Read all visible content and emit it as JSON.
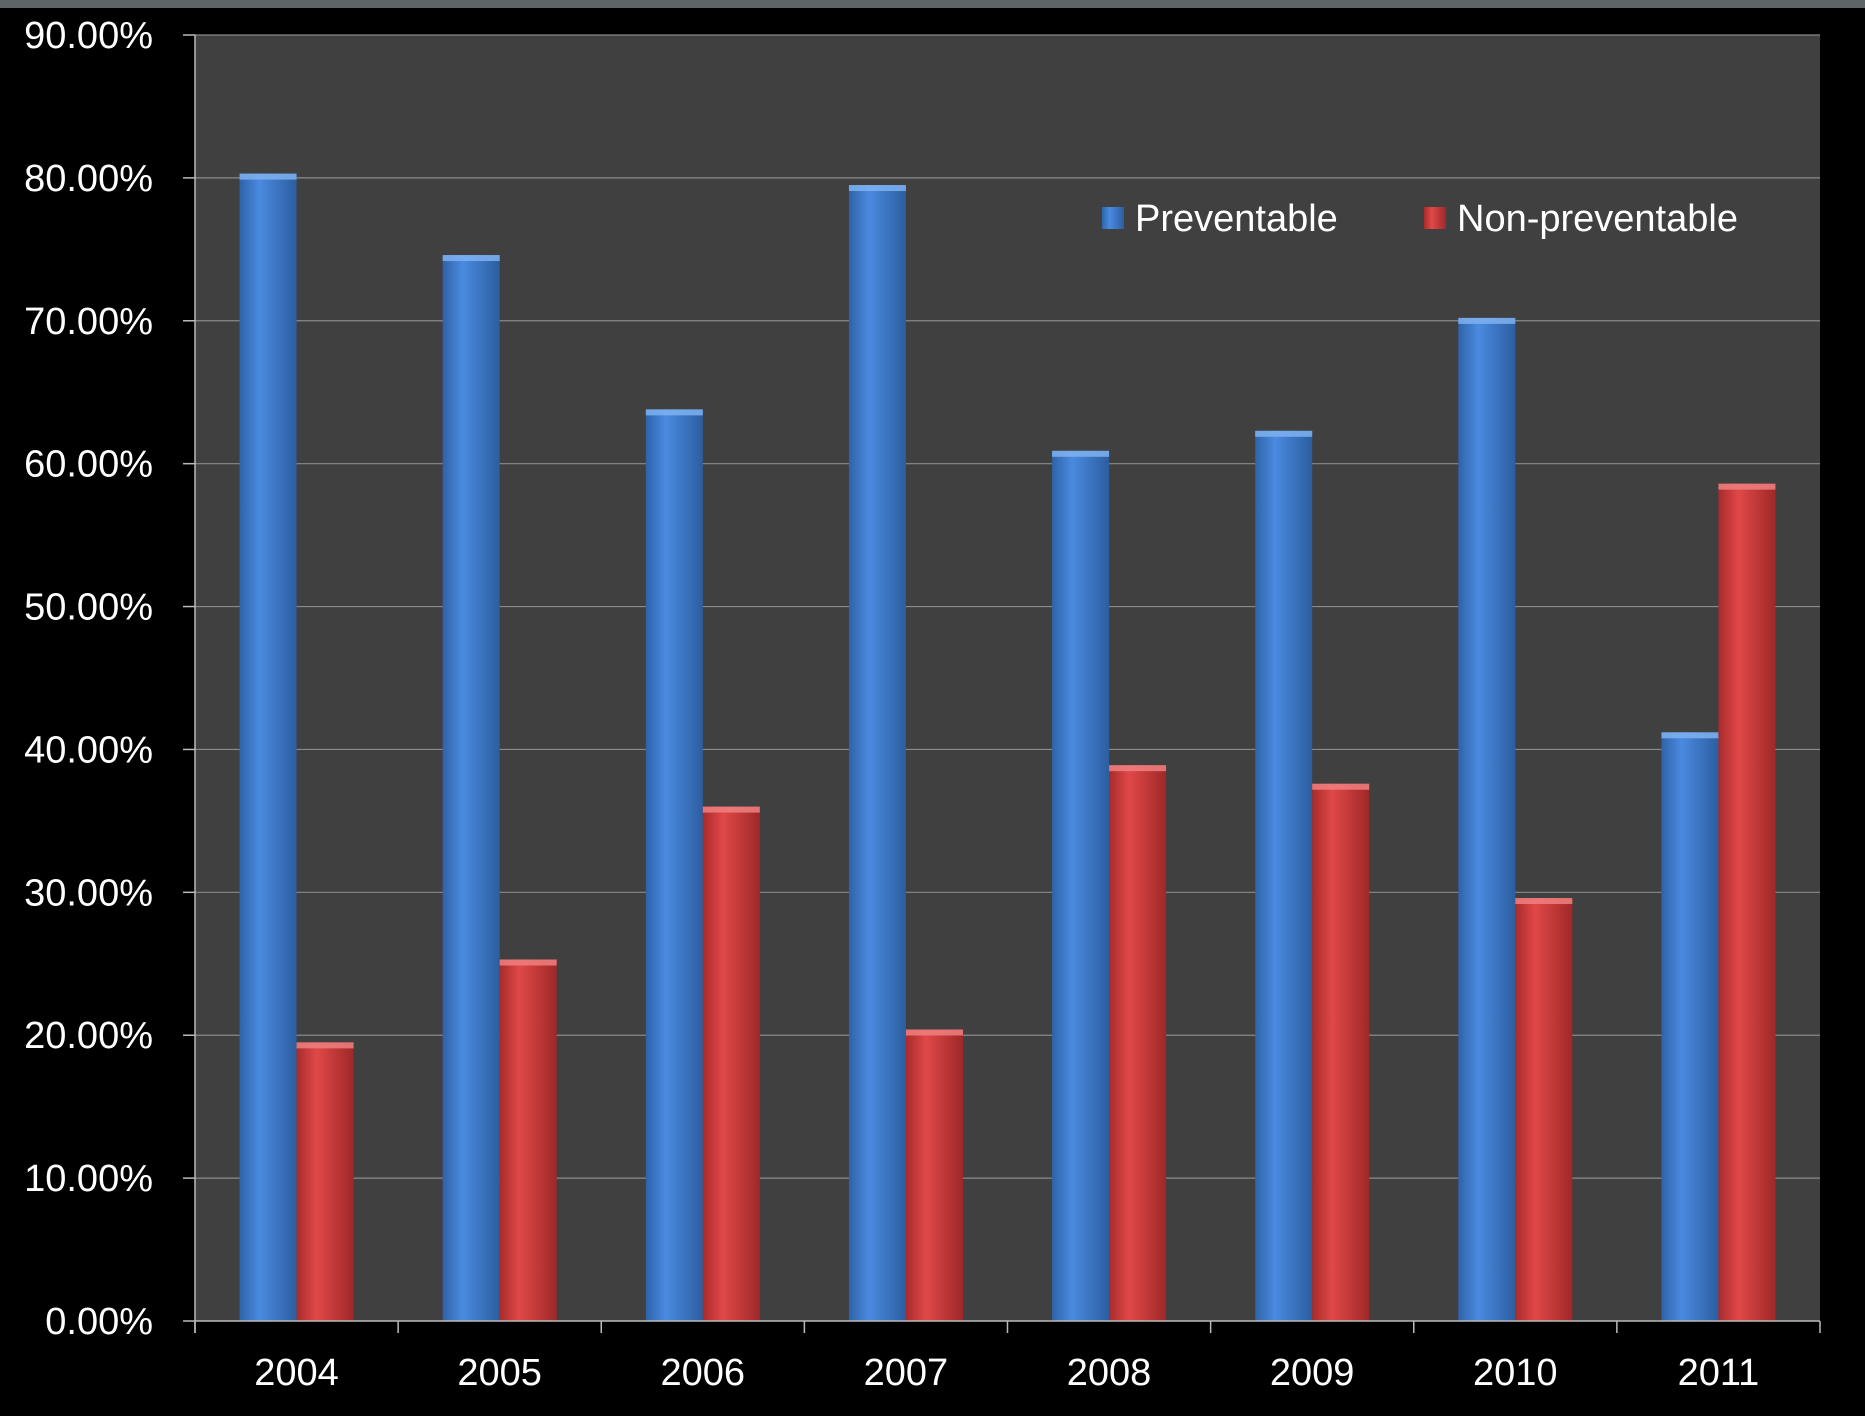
{
  "chart_data": {
    "type": "bar",
    "title": "",
    "xlabel": "",
    "ylabel": "",
    "categories": [
      "2004",
      "2005",
      "2006",
      "2007",
      "2008",
      "2009",
      "2010",
      "2011"
    ],
    "series": [
      {
        "name": "Preventable",
        "color": "#3e7fd2",
        "values": [
          80.3,
          74.6,
          63.8,
          79.5,
          60.9,
          62.3,
          70.2,
          41.2
        ]
      },
      {
        "name": "Non-preventable",
        "color": "#d23a3a",
        "values": [
          19.5,
          25.3,
          36.0,
          20.4,
          38.9,
          37.6,
          29.6,
          58.6
        ]
      }
    ],
    "ylim": [
      0,
      90
    ],
    "yticks": [
      "0.00%",
      "10.00%",
      "20.00%",
      "30.00%",
      "40.00%",
      "50.00%",
      "60.00%",
      "70.00%",
      "80.00%",
      "90.00%"
    ],
    "grid": true,
    "legend_position": "top-right",
    "plot_background": "#404040",
    "page_background": "#000000"
  }
}
